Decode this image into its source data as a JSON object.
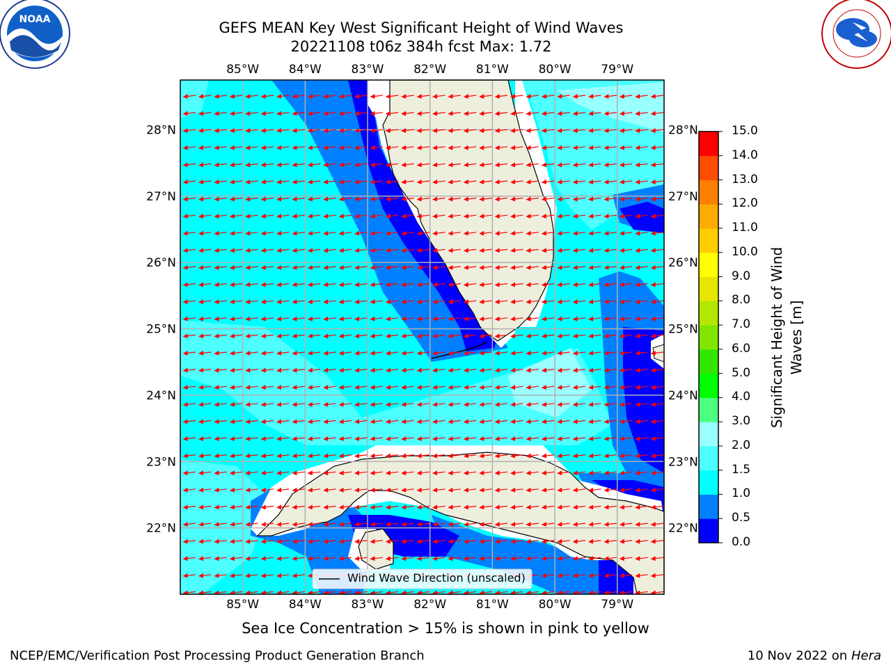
{
  "header": {
    "title_line1": "GEFS MEAN Key West Significant Height of Wind Waves",
    "title_line2": "20221108 t06z 384h fcst   Max: 1.72"
  },
  "logos": {
    "left": {
      "name": "NOAA",
      "icon": "noaa-logo"
    },
    "right": {
      "name": "NATIONAL WEATHER SERVICE",
      "icon": "nws-logo"
    }
  },
  "map": {
    "lon_labels": [
      "85°W",
      "84°W",
      "83°W",
      "82°W",
      "81°W",
      "80°W",
      "79°W"
    ],
    "lat_labels": [
      "28°N",
      "27°N",
      "26°N",
      "25°N",
      "24°N",
      "23°N",
      "22°N"
    ],
    "lon_values": [
      -85,
      -84,
      -83,
      -82,
      -81,
      -80,
      -79
    ],
    "lat_values": [
      28,
      27,
      26,
      25,
      24,
      23,
      22
    ],
    "extent": {
      "lon_min": -86.0,
      "lon_max": -78.25,
      "lat_min": 21.0,
      "lat_max": 28.75
    },
    "legend_label": "Wind Wave Direction (unscaled)",
    "arrow_color": "#ff0000",
    "land_color": "#eeeedd",
    "grid_color": "#b0b0b0"
  },
  "colorbar": {
    "title": "Significant Height of Wind Waves [m]",
    "levels": [
      "0.0",
      "0.5",
      "1.0",
      "1.5",
      "2.0",
      "3.0",
      "4.0",
      "5.0",
      "6.0",
      "7.0",
      "8.0",
      "9.0",
      "10.0",
      "11.0",
      "12.0",
      "13.0",
      "14.0",
      "15.0"
    ],
    "colors": [
      "#0000ff",
      "#0080ff",
      "#00ffff",
      "#4dffff",
      "#99ffff",
      "#4dff80",
      "#00ff00",
      "#33e600",
      "#80e600",
      "#b3e600",
      "#e6e600",
      "#ffff00",
      "#ffcc00",
      "#ffaa00",
      "#ff8000",
      "#ff4d00",
      "#ff0000"
    ]
  },
  "footer": {
    "subtitle": "Sea Ice Concentration > 15% is shown in pink to yellow",
    "left": "NCEP/EMC/Verification Post Processing Product Generation Branch",
    "right_date": "10 Nov 2022 on",
    "right_host": "Hera"
  }
}
